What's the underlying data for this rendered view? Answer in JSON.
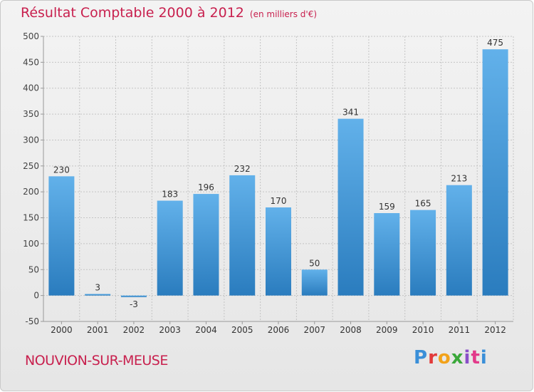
{
  "title": "Résultat Comptable 2000 à 2012",
  "unit": "(en milliers d'€)",
  "commune": "NOUVION-SUR-MEUSE",
  "logo": "Proxiti",
  "colors": {
    "title": "#c8204e",
    "bar_light": "#62b1ea",
    "bar_dark": "#2a7cbe",
    "grid": "#c4c4c4",
    "axis": "#999999"
  },
  "chart_data": {
    "type": "bar",
    "title": "Résultat Comptable 2000 à 2012 (en milliers d'€)",
    "xlabel": "",
    "ylabel": "",
    "categories": [
      "2000",
      "2001",
      "2002",
      "2003",
      "2004",
      "2005",
      "2006",
      "2007",
      "2008",
      "2009",
      "2010",
      "2011",
      "2012"
    ],
    "values": [
      230,
      3,
      -3,
      183,
      196,
      232,
      170,
      50,
      341,
      159,
      165,
      213,
      475
    ],
    "ylim": [
      -50,
      500
    ],
    "yticks": [
      -50,
      0,
      50,
      100,
      150,
      200,
      250,
      300,
      350,
      400,
      450,
      500
    ],
    "grid": true
  }
}
